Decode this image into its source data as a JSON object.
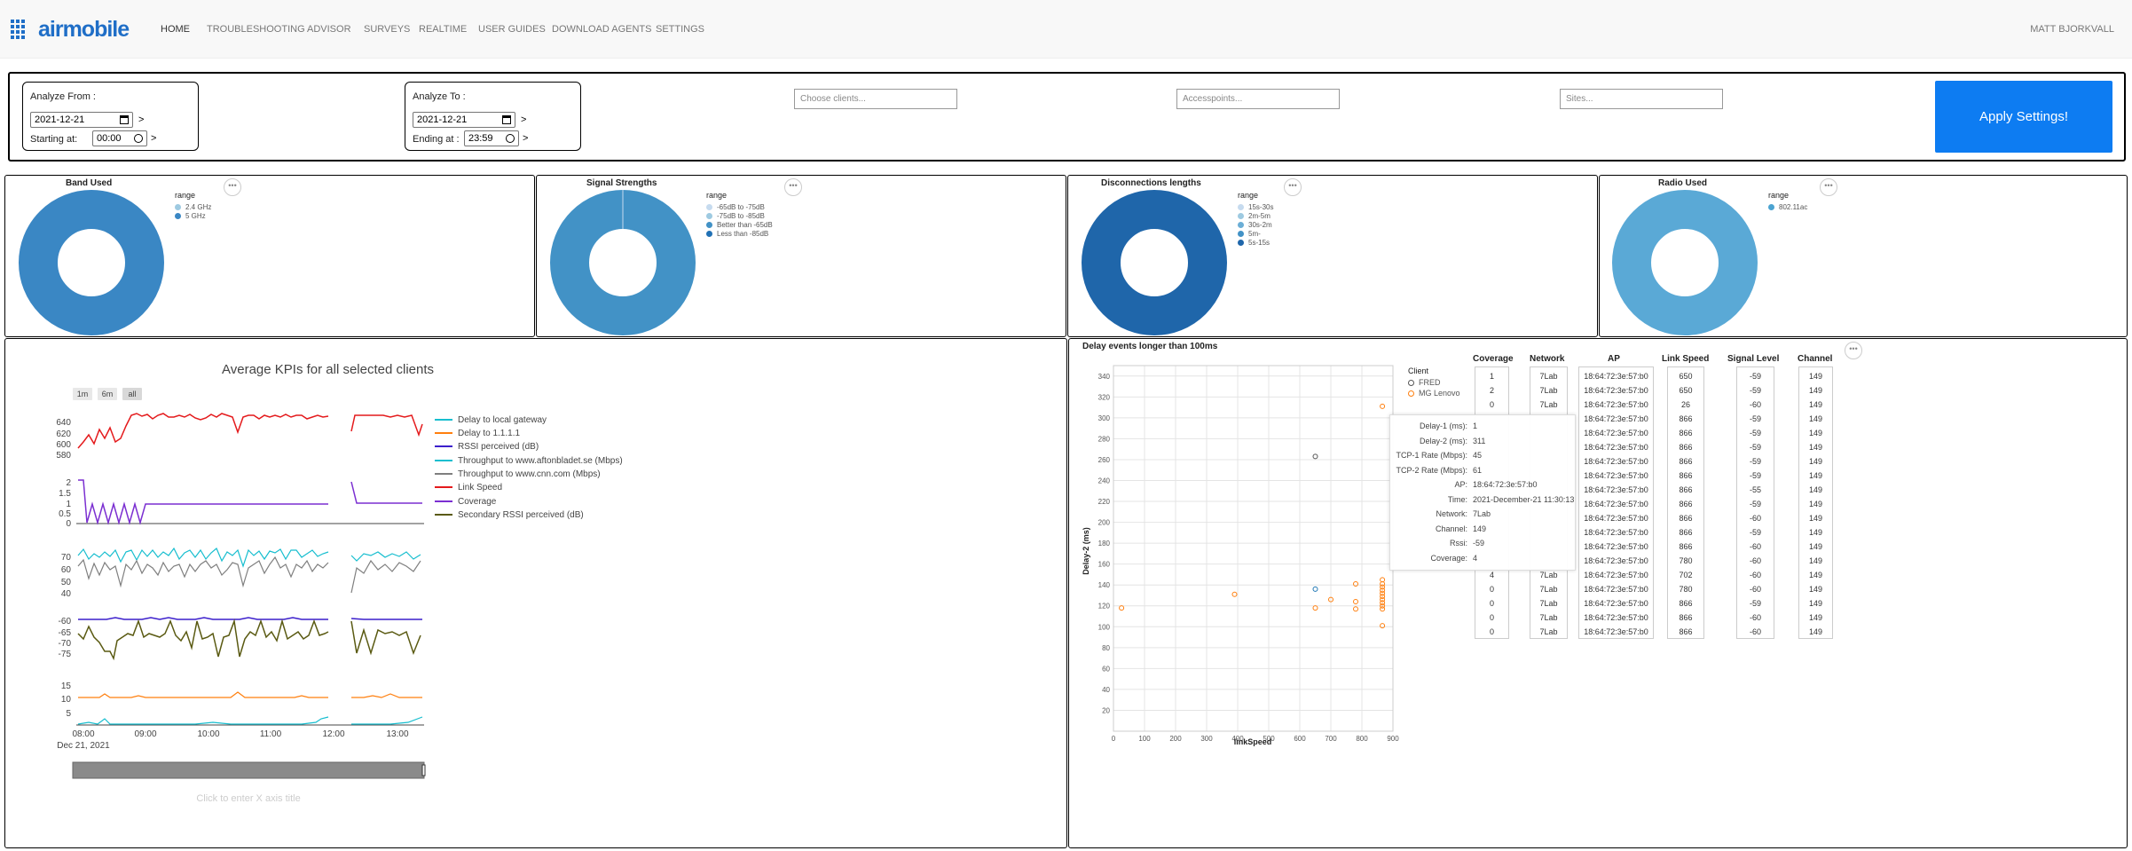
{
  "nav": {
    "logo": "airmobile",
    "items": [
      "HOME",
      "TROUBLESHOOTING",
      "ADVISOR",
      "SURVEYS",
      "REALTIME",
      "USER GUIDES",
      "DOWNLOAD AGENTS",
      "SETTINGS"
    ],
    "user": "MATT BJORKVALL"
  },
  "settings": {
    "from_label": "Analyze From :",
    "from_date": "2021-12-21",
    "from_start_label": "Starting at:",
    "from_time": "00:00",
    "to_label": "Analyze To :",
    "to_date": "2021-12-21",
    "to_end_label": "Ending at :",
    "to_time": "23:59",
    "arrow": ">",
    "clients_placeholder": "Choose clients...",
    "aps_placeholder": "Accesspoints...",
    "sites_placeholder": "Sites...",
    "apply_label": "Apply Settings!"
  },
  "more_label": "•••",
  "donuts": [
    {
      "title": "Band Used",
      "legend_title": "range",
      "items": [
        {
          "label": "2.4 GHz",
          "color": "#9ecae1",
          "value": 0
        },
        {
          "label": "5 GHz",
          "color": "#3a87c4",
          "value": 100
        }
      ]
    },
    {
      "title": "Signal Strengths",
      "legend_title": "range",
      "items": [
        {
          "label": "-65dB to -75dB",
          "color": "#c6dbef",
          "value": 0
        },
        {
          "label": "-75dB to -85dB",
          "color": "#9ecae1",
          "value": 0
        },
        {
          "label": "Better than -65dB",
          "color": "#4292c6",
          "value": 100
        },
        {
          "label": "Less than -85dB",
          "color": "#2171b5",
          "value": 0
        }
      ]
    },
    {
      "title": "Disconnections lengths",
      "legend_title": "range",
      "items": [
        {
          "label": "15s-30s",
          "color": "#c6dbef",
          "value": 0
        },
        {
          "label": "2m-5m",
          "color": "#9ecae1",
          "value": 0
        },
        {
          "label": "30s-2m",
          "color": "#6baed6",
          "value": 0
        },
        {
          "label": "5m-",
          "color": "#4292c6",
          "value": 0
        },
        {
          "label": "5s-15s",
          "color": "#1f66aa",
          "value": 100
        }
      ]
    },
    {
      "title": "Radio Used",
      "legend_title": "range",
      "items": [
        {
          "label": "802.11ac",
          "color": "#4ba3d1",
          "value": 100
        }
      ]
    }
  ],
  "kpi": {
    "title": "Average KPIs for all selected clients",
    "range_buttons": [
      "1m",
      "6m",
      "all"
    ],
    "legend": [
      {
        "label": "Delay to local gateway",
        "color": "#17becf"
      },
      {
        "label": "Delay to 1.1.1.1",
        "color": "#ff7f0e"
      },
      {
        "label": "RSSI perceived (dB)",
        "color": "#3c1fcc"
      },
      {
        "label": "Throughput to www.aftonbladet.se (Mbps)",
        "color": "#17becf"
      },
      {
        "label": "Throughput to www.cnn.com (Mbps)",
        "color": "#7f7f7f"
      },
      {
        "label": "Link Speed",
        "color": "#e41a1c"
      },
      {
        "label": "Coverage",
        "color": "#7b2fd1"
      },
      {
        "label": "Secondary RSSI perceived (dB)",
        "color": "#5a5a12"
      }
    ],
    "y_ticks_link": [
      "640",
      "620",
      "600",
      "580"
    ],
    "y_ticks_cov": [
      "2",
      "1.5",
      "1",
      "0.5",
      "0"
    ],
    "y_ticks_tp": [
      "70",
      "60",
      "50",
      "40"
    ],
    "y_ticks_rssi": [
      "-60",
      "-65",
      "-70",
      "-75"
    ],
    "y_ticks_delay": [
      "15",
      "10",
      "5"
    ],
    "x_ticks": [
      "08:00",
      "09:00",
      "10:00",
      "11:00",
      "12:00",
      "13:00"
    ],
    "x_date": "Dec 21, 2021",
    "x_axis_hint": "Click to enter X axis title"
  },
  "scatter": {
    "title": "Delay events longer than 100ms",
    "xlabel": "linkSpeed",
    "ylabel": "Delay-2 (ms)",
    "x_ticks": [
      "0",
      "100",
      "200",
      "300",
      "400",
      "500",
      "600",
      "700",
      "800",
      "900"
    ],
    "y_ticks": [
      "20",
      "40",
      "60",
      "80",
      "100",
      "120",
      "140",
      "160",
      "180",
      "200",
      "220",
      "240",
      "260",
      "280",
      "300",
      "320",
      "340"
    ],
    "legend_title": "Client",
    "clients": [
      {
        "label": "FRED",
        "color": "#555555"
      },
      {
        "label": "MG Lenovo",
        "color": "#ff7f0e"
      }
    ]
  },
  "chart_data": {
    "type": "scatter",
    "title": "Delay events longer than 100ms",
    "xlabel": "linkSpeed",
    "ylabel": "Delay-2 (ms)",
    "xlim": [
      0,
      900
    ],
    "ylim": [
      0,
      350
    ],
    "series": [
      {
        "name": "FRED",
        "color": "#555555",
        "points": [
          [
            650,
            263
          ]
        ]
      },
      {
        "name": "MG Lenovo",
        "color": "#ff7f0e",
        "points": [
          [
            26,
            118
          ],
          [
            390,
            131
          ],
          [
            650,
            118
          ],
          [
            700,
            126
          ],
          [
            780,
            141
          ],
          [
            780,
            124
          ],
          [
            780,
            117
          ],
          [
            866,
            311
          ],
          [
            866,
            145
          ],
          [
            866,
            141
          ],
          [
            866,
            138
          ],
          [
            866,
            135
          ],
          [
            866,
            132
          ],
          [
            866,
            129
          ],
          [
            866,
            126
          ],
          [
            866,
            123
          ],
          [
            866,
            120
          ],
          [
            866,
            117
          ],
          [
            866,
            101
          ]
        ]
      },
      {
        "name": "",
        "color": "#1f77b4",
        "points": [
          [
            650,
            136
          ]
        ]
      }
    ]
  },
  "tooltip": {
    "rows": [
      {
        "k": "Delay-1 (ms):",
        "v": "1"
      },
      {
        "k": "Delay-2 (ms):",
        "v": "311"
      },
      {
        "k": "TCP-1 Rate (Mbps):",
        "v": "45"
      },
      {
        "k": "TCP-2 Rate (Mbps):",
        "v": "61"
      },
      {
        "k": "AP:",
        "v": "18:64:72:3e:57:b0"
      },
      {
        "k": "Time:",
        "v": "2021-December-21 11:30:13"
      },
      {
        "k": "Network:",
        "v": "7Lab"
      },
      {
        "k": "Channel:",
        "v": "149"
      },
      {
        "k": "Rssi:",
        "v": "-59"
      },
      {
        "k": "Coverage:",
        "v": "4"
      }
    ]
  },
  "table": {
    "headers": [
      "Coverage",
      "Network",
      "AP",
      "Link Speed",
      "Signal Level",
      "Channel"
    ],
    "rows": [
      [
        "1",
        "7Lab",
        "18:64:72:3e:57:b0",
        "650",
        "-59",
        "149"
      ],
      [
        "2",
        "7Lab",
        "18:64:72:3e:57:b0",
        "650",
        "-59",
        "149"
      ],
      [
        "0",
        "7Lab",
        "18:64:72:3e:57:b0",
        "26",
        "-60",
        "149"
      ],
      [
        "",
        "",
        "18:64:72:3e:57:b0",
        "866",
        "-59",
        "149"
      ],
      [
        "",
        "",
        "18:64:72:3e:57:b0",
        "866",
        "-59",
        "149"
      ],
      [
        "",
        "",
        "18:64:72:3e:57:b0",
        "866",
        "-59",
        "149"
      ],
      [
        "",
        "",
        "18:64:72:3e:57:b0",
        "866",
        "-59",
        "149"
      ],
      [
        "",
        "",
        "18:64:72:3e:57:b0",
        "866",
        "-59",
        "149"
      ],
      [
        "",
        "",
        "18:64:72:3e:57:b0",
        "866",
        "-55",
        "149"
      ],
      [
        "",
        "",
        "18:64:72:3e:57:b0",
        "866",
        "-59",
        "149"
      ],
      [
        "",
        "",
        "18:64:72:3e:57:b0",
        "866",
        "-60",
        "149"
      ],
      [
        "",
        "",
        "18:64:72:3e:57:b0",
        "866",
        "-59",
        "149"
      ],
      [
        "",
        "",
        "18:64:72:3e:57:b0",
        "866",
        "-60",
        "149"
      ],
      [
        "",
        "",
        "18:64:72:3e:57:b0",
        "780",
        "-60",
        "149"
      ],
      [
        "4",
        "7Lab",
        "18:64:72:3e:57:b0",
        "702",
        "-60",
        "149"
      ],
      [
        "0",
        "7Lab",
        "18:64:72:3e:57:b0",
        "780",
        "-60",
        "149"
      ],
      [
        "0",
        "7Lab",
        "18:64:72:3e:57:b0",
        "866",
        "-59",
        "149"
      ],
      [
        "0",
        "7Lab",
        "18:64:72:3e:57:b0",
        "866",
        "-60",
        "149"
      ],
      [
        "0",
        "7Lab",
        "18:64:72:3e:57:b0",
        "866",
        "-60",
        "149"
      ]
    ]
  }
}
